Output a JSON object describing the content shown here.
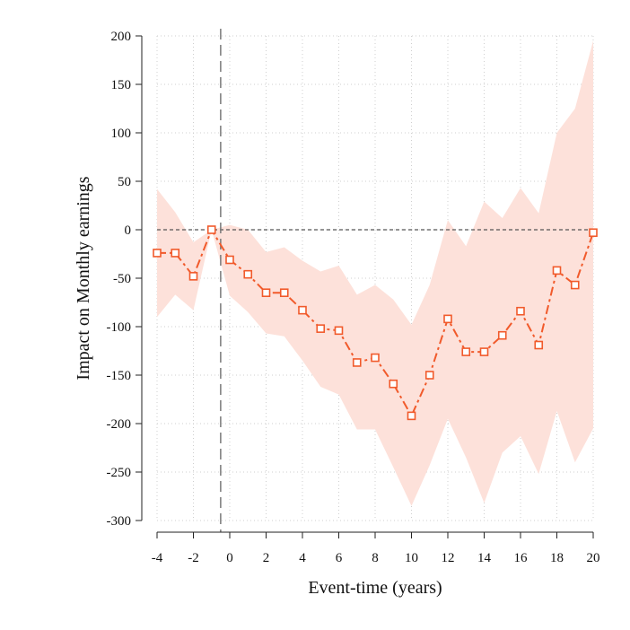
{
  "chart_data": {
    "type": "line",
    "xlabel": "Event-time (years)",
    "ylabel": "Impact on Monthly earnings",
    "xlim": [
      -4,
      20
    ],
    "ylim": [
      -300,
      200
    ],
    "x_ticks": [
      -4,
      -2,
      0,
      2,
      4,
      6,
      8,
      10,
      12,
      14,
      16,
      18,
      20
    ],
    "y_ticks": [
      200,
      150,
      100,
      50,
      0,
      -50,
      -100,
      -150,
      -200,
      -250,
      -300
    ],
    "grid": true,
    "reference_lines": {
      "vertical_x": -0.5,
      "horizontal_y": 0
    },
    "x": [
      -4,
      -3,
      -2,
      -1,
      0,
      1,
      2,
      3,
      4,
      5,
      6,
      7,
      8,
      9,
      10,
      11,
      12,
      13,
      14,
      15,
      16,
      17,
      18,
      19,
      20
    ],
    "series": [
      {
        "values": [
          -24,
          -24,
          -48,
          0,
          -31,
          -46,
          -65,
          -65,
          -83,
          -102,
          -104,
          -137,
          -132,
          -159,
          -192,
          -150,
          -92,
          -126,
          -126,
          -109,
          -84,
          -119,
          -42,
          -57,
          -3
        ],
        "ci_lower": [
          -90,
          -67,
          -83,
          0,
          -68,
          -85,
          -107,
          -110,
          -135,
          -162,
          -170,
          -206,
          -206,
          -245,
          -285,
          -243,
          -195,
          -235,
          -282,
          -230,
          -213,
          -252,
          -187,
          -240,
          -205
        ],
        "ci_upper": [
          42,
          18,
          -13,
          0,
          5,
          0,
          -23,
          -18,
          -32,
          -43,
          -37,
          -67,
          -57,
          -72,
          -98,
          -57,
          10,
          -17,
          29,
          12,
          43,
          17,
          100,
          125,
          195
        ]
      }
    ],
    "colors": {
      "line": "#f15a2b",
      "band": "#fde1da",
      "ref_line": "#7a7a7a",
      "grid": "#cfcfcf"
    }
  }
}
